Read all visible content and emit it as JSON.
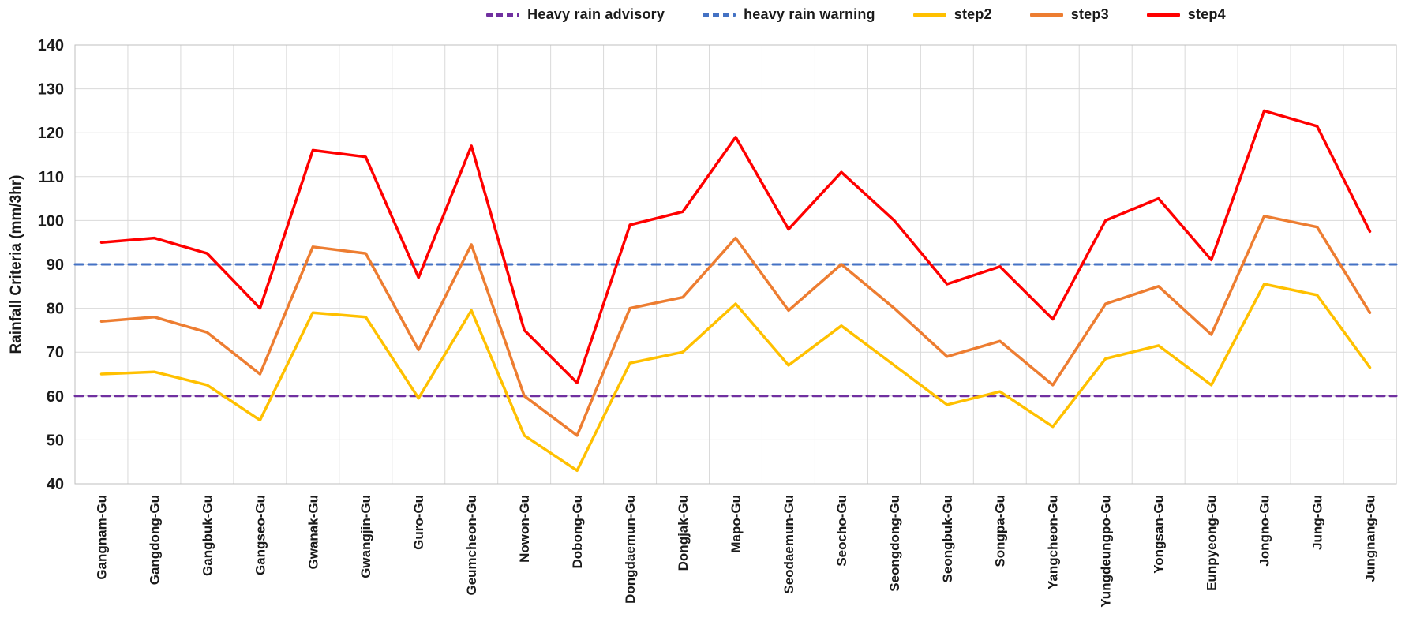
{
  "chart_data": {
    "type": "line",
    "title": "",
    "xlabel": "",
    "ylabel": "Rainfall Criteria (mm/3hr)",
    "ylim": [
      40,
      140
    ],
    "ytick_step": 10,
    "grid": true,
    "legend_position": "top",
    "categories": [
      "Gangnam-Gu",
      "Gangdong-Gu",
      "Gangbuk-Gu",
      "Gangseo-Gu",
      "Gwanak-Gu",
      "Gwangjin-Gu",
      "Guro-Gu",
      "Geumcheon-Gu",
      "Nowon-Gu",
      "Dobong-Gu",
      "Dongdaemun-Gu",
      "Dongjak-Gu",
      "Mapo-Gu",
      "Seodaemun-Gu",
      "Seocho-Gu",
      "Seongdong-Gu",
      "Seongbuk-Gu",
      "Songpa-Gu",
      "Yangcheon-Gu",
      "Yungdeungpo-Gu",
      "Yongsan-Gu",
      "Eunpyeong-Gu",
      "Jongno-Gu",
      "Jung-Gu",
      "Jungnang-Gu"
    ],
    "series": [
      {
        "name": "Heavy rain advisory",
        "color": "#7030A0",
        "style": "dashed",
        "constant": 60
      },
      {
        "name": "heavy rain warning",
        "color": "#4472C4",
        "style": "dashed",
        "constant": 90
      },
      {
        "name": "step2",
        "color": "#FFC000",
        "style": "solid",
        "values": [
          65,
          65.5,
          62.5,
          54.5,
          79,
          78,
          59.5,
          79.5,
          51,
          43,
          67.5,
          70,
          81,
          67,
          76,
          67,
          58,
          61,
          53,
          68.5,
          71.5,
          62.5,
          85.5,
          83,
          66.5
        ]
      },
      {
        "name": "step3",
        "color": "#ED7D31",
        "style": "solid",
        "values": [
          77,
          78,
          74.5,
          65,
          94,
          92.5,
          70.5,
          94.5,
          60,
          51,
          80,
          82.5,
          96,
          79.5,
          90,
          80,
          69,
          72.5,
          62.5,
          81,
          85,
          74,
          101,
          98.5,
          79
        ]
      },
      {
        "name": "step4",
        "color": "#FF0000",
        "style": "solid",
        "values": [
          95,
          96,
          92.5,
          80,
          116,
          114.5,
          87,
          117,
          75,
          63,
          99,
          102,
          119,
          98,
          111,
          100,
          85.5,
          89.5,
          77.5,
          100,
          105,
          91,
          125,
          121.5,
          97.5
        ]
      }
    ]
  }
}
